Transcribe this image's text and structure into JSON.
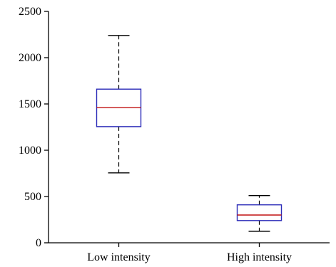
{
  "chart_data": {
    "type": "boxplot",
    "title": "",
    "xlabel": "",
    "ylabel": "",
    "ylim": [
      0,
      2500
    ],
    "yticks": [
      0,
      500,
      1000,
      1500,
      2000,
      2500
    ],
    "ytick_labels": [
      "0",
      "500",
      "1000",
      "1500",
      "2000",
      "2500"
    ],
    "grid": false,
    "legend": "none",
    "categories": [
      "Low intensity",
      "High intensity"
    ],
    "boxes": [
      {
        "category": "Low intensity",
        "whisker_low": 755,
        "q1": 1255,
        "median": 1460,
        "q3": 1660,
        "whisker_high": 2240
      },
      {
        "category": "High intensity",
        "whisker_low": 125,
        "q1": 240,
        "median": 300,
        "q3": 410,
        "whisker_high": 510
      }
    ],
    "colors": {
      "box": "#2b2bb8",
      "median": "#c01010",
      "whisker": "#000000",
      "axis": "#000000"
    }
  }
}
